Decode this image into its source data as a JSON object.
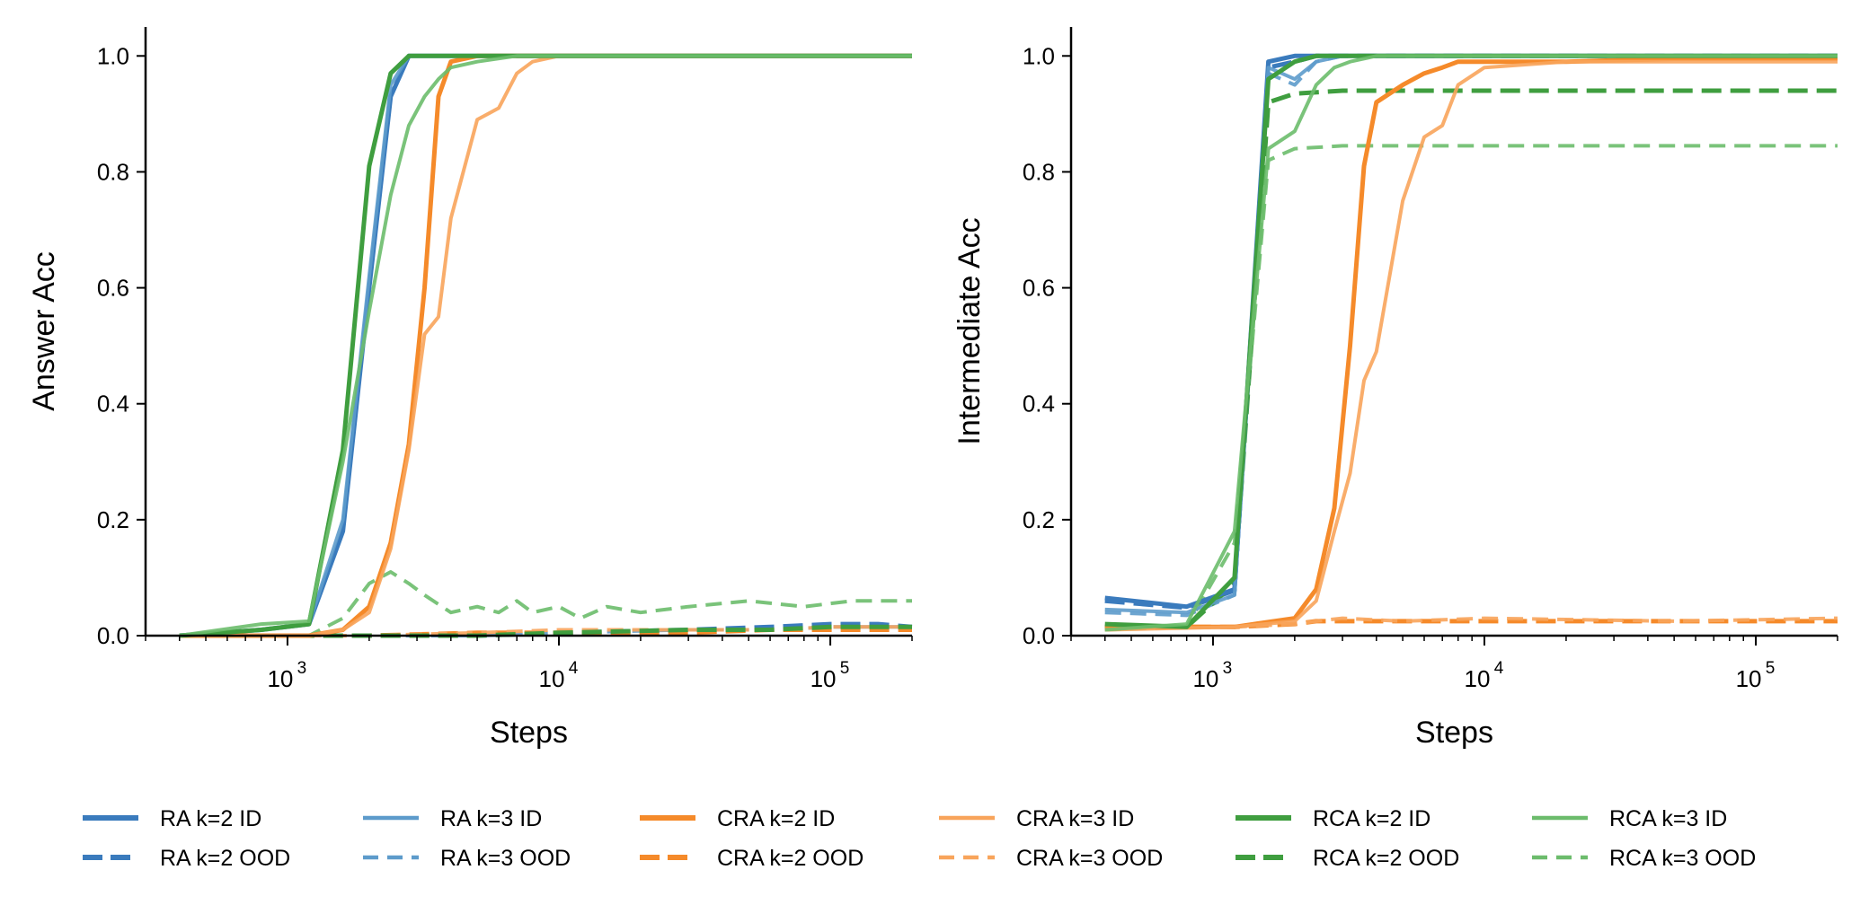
{
  "colors": {
    "ra": "#3a7bbd",
    "ra_light": "#5d9bcb",
    "cra": "#f58a2a",
    "cra_light": "#f8a45b",
    "rca": "#3f9e3f",
    "rca_light": "#6cbc6c",
    "axis": "#000000"
  },
  "chart_data": [
    {
      "type": "line",
      "xscale": "log",
      "xlabel": "Steps",
      "ylabel": "Answer Acc",
      "xlim": [
        300,
        200000
      ],
      "ylim": [
        0,
        1.05
      ],
      "xticks": [
        {
          "value": 1000,
          "base": "10",
          "exp": "3"
        },
        {
          "value": 10000,
          "base": "10",
          "exp": "4"
        },
        {
          "value": 100000,
          "base": "10",
          "exp": "5"
        }
      ],
      "yticks": [
        {
          "value": 0.0,
          "label": "0.0"
        },
        {
          "value": 0.2,
          "label": "0.2"
        },
        {
          "value": 0.4,
          "label": "0.4"
        },
        {
          "value": 0.6,
          "label": "0.6"
        },
        {
          "value": 0.8,
          "label": "0.8"
        },
        {
          "value": 1.0,
          "label": "1.0"
        }
      ],
      "series": [
        {
          "key": "ra2id",
          "x": [
            400,
            800,
            1200,
            1600,
            2000,
            2400,
            2800,
            3200,
            5000,
            10000,
            50000,
            200000
          ],
          "y": [
            0.0,
            0.01,
            0.02,
            0.18,
            0.6,
            0.93,
            1.0,
            1.0,
            1.0,
            1.0,
            1.0,
            1.0
          ]
        },
        {
          "key": "ra2ood",
          "x": [
            400,
            1000,
            2000,
            5000,
            10000,
            30000,
            60000,
            100000,
            150000,
            200000
          ],
          "y": [
            0.0,
            0.0,
            0.0,
            0.0,
            0.005,
            0.01,
            0.015,
            0.02,
            0.02,
            0.015
          ]
        },
        {
          "key": "ra3id",
          "x": [
            400,
            800,
            1200,
            1600,
            2000,
            2400,
            2800,
            3200,
            5000,
            10000,
            50000,
            200000
          ],
          "y": [
            0.0,
            0.01,
            0.02,
            0.2,
            0.62,
            0.95,
            1.0,
            1.0,
            1.0,
            1.0,
            1.0,
            1.0
          ]
        },
        {
          "key": "ra3ood",
          "x": [
            400,
            1000,
            2000,
            5000,
            10000,
            30000,
            60000,
            100000,
            200000
          ],
          "y": [
            0.0,
            0.0,
            0.0,
            0.0,
            0.005,
            0.01,
            0.01,
            0.015,
            0.015
          ]
        },
        {
          "key": "cra2id",
          "x": [
            400,
            1200,
            1600,
            2000,
            2400,
            2800,
            3200,
            3600,
            4000,
            5000,
            10000,
            50000,
            200000
          ],
          "y": [
            0.0,
            0.0,
            0.01,
            0.05,
            0.16,
            0.33,
            0.6,
            0.93,
            0.99,
            1.0,
            1.0,
            1.0,
            1.0
          ]
        },
        {
          "key": "cra2ood",
          "x": [
            400,
            2000,
            5000,
            10000,
            30000,
            60000,
            100000,
            200000
          ],
          "y": [
            0.0,
            0.0,
            0.005,
            0.005,
            0.005,
            0.01,
            0.01,
            0.01
          ]
        },
        {
          "key": "cra3id",
          "x": [
            400,
            1200,
            1600,
            2000,
            2400,
            2800,
            3200,
            3600,
            4000,
            5000,
            6000,
            7000,
            8000,
            10000,
            50000,
            200000
          ],
          "y": [
            0.0,
            0.0,
            0.01,
            0.04,
            0.15,
            0.32,
            0.52,
            0.55,
            0.72,
            0.89,
            0.91,
            0.97,
            0.99,
            1.0,
            1.0,
            1.0
          ]
        },
        {
          "key": "cra3ood",
          "x": [
            400,
            2000,
            5000,
            10000,
            30000,
            60000,
            100000,
            200000
          ],
          "y": [
            0.0,
            0.0,
            0.005,
            0.01,
            0.01,
            0.01,
            0.015,
            0.015
          ]
        },
        {
          "key": "rca2id",
          "x": [
            400,
            800,
            1200,
            1600,
            2000,
            2400,
            2800,
            3200,
            5000,
            10000,
            50000,
            200000
          ],
          "y": [
            0.0,
            0.01,
            0.02,
            0.32,
            0.81,
            0.97,
            1.0,
            1.0,
            1.0,
            1.0,
            1.0,
            1.0
          ]
        },
        {
          "key": "rca2ood",
          "x": [
            400,
            1000,
            2000,
            5000,
            10000,
            30000,
            60000,
            100000,
            150000,
            200000
          ],
          "y": [
            0.0,
            0.0,
            0.0,
            0.0,
            0.005,
            0.01,
            0.01,
            0.015,
            0.015,
            0.015
          ]
        },
        {
          "key": "rca3id",
          "x": [
            400,
            800,
            1200,
            1600,
            2000,
            2400,
            2800,
            3200,
            3600,
            4000,
            5000,
            7000,
            10000,
            50000,
            200000
          ],
          "y": [
            0.0,
            0.02,
            0.025,
            0.3,
            0.56,
            0.76,
            0.88,
            0.93,
            0.96,
            0.98,
            0.99,
            1.0,
            1.0,
            1.0,
            1.0
          ]
        },
        {
          "key": "rca3ood",
          "x": [
            400,
            1200,
            1600,
            2000,
            2400,
            2800,
            3200,
            4000,
            5000,
            6000,
            7000,
            8000,
            10000,
            12000,
            15000,
            20000,
            30000,
            50000,
            80000,
            120000,
            200000
          ],
          "y": [
            0.0,
            0.0,
            0.03,
            0.09,
            0.11,
            0.09,
            0.07,
            0.04,
            0.05,
            0.04,
            0.06,
            0.04,
            0.05,
            0.03,
            0.05,
            0.04,
            0.05,
            0.06,
            0.05,
            0.06,
            0.06
          ]
        }
      ]
    },
    {
      "type": "line",
      "xscale": "log",
      "xlabel": "Steps",
      "ylabel": "Intermediate Acc",
      "xlim": [
        300,
        200000
      ],
      "ylim": [
        0,
        1.05
      ],
      "xticks": [
        {
          "value": 1000,
          "base": "10",
          "exp": "3"
        },
        {
          "value": 10000,
          "base": "10",
          "exp": "4"
        },
        {
          "value": 100000,
          "base": "10",
          "exp": "5"
        }
      ],
      "yticks": [
        {
          "value": 0.0,
          "label": "0.0"
        },
        {
          "value": 0.2,
          "label": "0.2"
        },
        {
          "value": 0.4,
          "label": "0.4"
        },
        {
          "value": 0.6,
          "label": "0.6"
        },
        {
          "value": 0.8,
          "label": "0.8"
        },
        {
          "value": 1.0,
          "label": "1.0"
        }
      ],
      "series": [
        {
          "key": "ra2id",
          "x": [
            400,
            800,
            1200,
            1600,
            2000,
            2400,
            3000,
            5000,
            10000,
            200000
          ],
          "y": [
            0.065,
            0.05,
            0.08,
            0.99,
            1.0,
            1.0,
            1.0,
            1.0,
            1.0,
            1.0
          ]
        },
        {
          "key": "ra2ood",
          "x": [
            400,
            800,
            1200,
            1600,
            2000,
            2400,
            3000,
            5000,
            10000,
            200000
          ],
          "y": [
            0.06,
            0.048,
            0.078,
            0.98,
            0.99,
            1.0,
            1.0,
            1.0,
            1.0,
            1.0
          ]
        },
        {
          "key": "ra3id",
          "x": [
            400,
            800,
            1200,
            1600,
            2000,
            2400,
            3000,
            5000,
            10000,
            200000
          ],
          "y": [
            0.045,
            0.04,
            0.07,
            0.98,
            0.96,
            0.99,
            1.0,
            1.0,
            1.0,
            1.0
          ]
        },
        {
          "key": "ra3ood",
          "x": [
            400,
            800,
            1200,
            1600,
            2000,
            2400,
            3000,
            5000,
            10000,
            200000
          ],
          "y": [
            0.04,
            0.035,
            0.07,
            0.97,
            0.95,
            0.99,
            1.0,
            1.0,
            1.0,
            1.0
          ]
        },
        {
          "key": "cra2id",
          "x": [
            400,
            1200,
            2000,
            2400,
            2800,
            3200,
            3600,
            4000,
            5000,
            6000,
            7000,
            8000,
            10000,
            20000,
            50000,
            200000
          ],
          "y": [
            0.015,
            0.015,
            0.03,
            0.08,
            0.22,
            0.5,
            0.81,
            0.92,
            0.95,
            0.97,
            0.98,
            0.99,
            0.99,
            0.99,
            0.995,
            0.995
          ]
        },
        {
          "key": "cra2ood",
          "x": [
            400,
            1200,
            2000,
            2400,
            3000,
            5000,
            10000,
            50000,
            200000
          ],
          "y": [
            0.015,
            0.015,
            0.02,
            0.025,
            0.025,
            0.025,
            0.025,
            0.025,
            0.025
          ]
        },
        {
          "key": "cra3id",
          "x": [
            400,
            1200,
            2000,
            2400,
            2800,
            3200,
            3600,
            4000,
            5000,
            6000,
            7000,
            8000,
            10000,
            20000,
            50000,
            200000
          ],
          "y": [
            0.01,
            0.015,
            0.025,
            0.06,
            0.18,
            0.28,
            0.44,
            0.49,
            0.75,
            0.86,
            0.88,
            0.95,
            0.98,
            0.99,
            0.99,
            0.99
          ]
        },
        {
          "key": "cra3ood",
          "x": [
            400,
            1200,
            2000,
            2400,
            3000,
            5000,
            10000,
            50000,
            200000
          ],
          "y": [
            0.015,
            0.015,
            0.02,
            0.025,
            0.03,
            0.025,
            0.03,
            0.025,
            0.03
          ]
        },
        {
          "key": "rca2id",
          "x": [
            400,
            800,
            1200,
            1600,
            2000,
            2400,
            3000,
            5000,
            10000,
            200000
          ],
          "y": [
            0.02,
            0.015,
            0.1,
            0.96,
            0.99,
            1.0,
            1.0,
            1.0,
            1.0,
            1.0
          ]
        },
        {
          "key": "rca2ood",
          "x": [
            400,
            800,
            1200,
            1600,
            2000,
            3000,
            5000,
            10000,
            50000,
            200000
          ],
          "y": [
            0.015,
            0.015,
            0.09,
            0.92,
            0.935,
            0.94,
            0.94,
            0.94,
            0.94,
            0.94
          ]
        },
        {
          "key": "rca3id",
          "x": [
            400,
            800,
            1200,
            1600,
            2000,
            2400,
            2800,
            3200,
            4000,
            5000,
            10000,
            200000
          ],
          "y": [
            0.01,
            0.02,
            0.18,
            0.84,
            0.87,
            0.95,
            0.98,
            0.99,
            1.0,
            1.0,
            1.0,
            1.0
          ]
        },
        {
          "key": "rca3ood",
          "x": [
            400,
            800,
            1200,
            1600,
            2000,
            3000,
            5000,
            10000,
            50000,
            200000
          ],
          "y": [
            0.01,
            0.015,
            0.16,
            0.82,
            0.84,
            0.845,
            0.845,
            0.845,
            0.845,
            0.845
          ]
        }
      ]
    }
  ],
  "legend": {
    "placement": "bottom",
    "entries": [
      {
        "key": "ra2id",
        "label": "RA k=2 ID",
        "color": "#3a7bbd",
        "dash": "solid",
        "weight": "bold"
      },
      {
        "key": "ra2ood",
        "label": "RA k=2 OOD",
        "color": "#3a7bbd",
        "dash": "dashed",
        "weight": "bold"
      },
      {
        "key": "ra3id",
        "label": "RA k=3 ID",
        "color": "#5d9bcb",
        "dash": "solid",
        "weight": "light"
      },
      {
        "key": "ra3ood",
        "label": "RA k=3 OOD",
        "color": "#5d9bcb",
        "dash": "dashed",
        "weight": "light"
      },
      {
        "key": "cra2id",
        "label": "CRA k=2 ID",
        "color": "#f58a2a",
        "dash": "solid",
        "weight": "bold"
      },
      {
        "key": "cra2ood",
        "label": "CRA k=2 OOD",
        "color": "#f58a2a",
        "dash": "dashed",
        "weight": "bold"
      },
      {
        "key": "cra3id",
        "label": "CRA k=3 ID",
        "color": "#f8a45b",
        "dash": "solid",
        "weight": "light"
      },
      {
        "key": "cra3ood",
        "label": "CRA k=3 OOD",
        "color": "#f8a45b",
        "dash": "dashed",
        "weight": "light"
      },
      {
        "key": "rca2id",
        "label": "RCA k=2 ID",
        "color": "#3f9e3f",
        "dash": "solid",
        "weight": "bold"
      },
      {
        "key": "rca2ood",
        "label": "RCA k=2 OOD",
        "color": "#3f9e3f",
        "dash": "dashed",
        "weight": "bold"
      },
      {
        "key": "rca3id",
        "label": "RCA k=3 ID",
        "color": "#6cbc6c",
        "dash": "solid",
        "weight": "light"
      },
      {
        "key": "rca3ood",
        "label": "RCA k=3 OOD",
        "color": "#6cbc6c",
        "dash": "dashed",
        "weight": "light"
      }
    ]
  }
}
